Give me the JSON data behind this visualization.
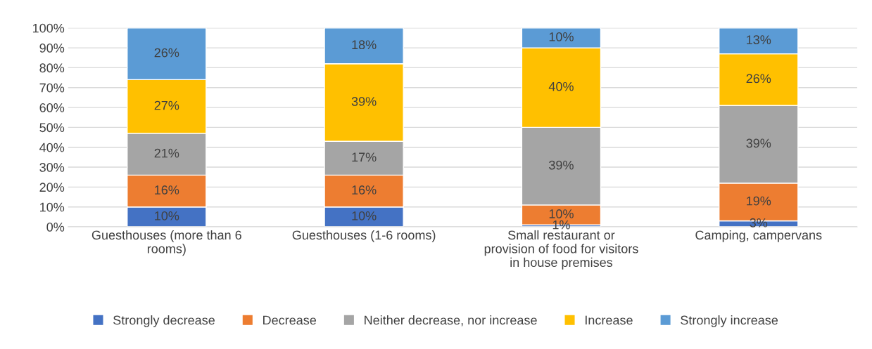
{
  "chart_data": {
    "type": "bar",
    "stacked": true,
    "categories": [
      "Guesthouses (more than 6\nrooms)",
      "Guesthouses (1-6 rooms)",
      "Small restaurant or\nprovision of food for visitors\nin house premises",
      "Camping, campervans"
    ],
    "series": [
      {
        "name": "Strongly decrease",
        "color": "#4472c4",
        "values": [
          10,
          10,
          1,
          3
        ],
        "value_labels": [
          "10%",
          "10%",
          "1%",
          "3%"
        ]
      },
      {
        "name": "Decrease",
        "color": "#ed7d31",
        "values": [
          16,
          16,
          10,
          19
        ],
        "value_labels": [
          "16%",
          "16%",
          "10%",
          "19%"
        ]
      },
      {
        "name": "Neither decrease, nor increase",
        "color": "#a5a5a5",
        "values": [
          21,
          17,
          39,
          39
        ],
        "value_labels": [
          "21%",
          "17%",
          "39%",
          "39%"
        ]
      },
      {
        "name": "Increase",
        "color": "#ffc000",
        "values": [
          27,
          39,
          40,
          26
        ],
        "value_labels": [
          "27%",
          "39%",
          "40%",
          "26%"
        ]
      },
      {
        "name": "Strongly increase",
        "color": "#5b9bd5",
        "values": [
          26,
          18,
          10,
          13
        ],
        "value_labels": [
          "26%",
          "18%",
          "10%",
          "13%"
        ]
      }
    ],
    "ylim": [
      0,
      100
    ],
    "yticks": [
      {
        "value": 0,
        "label": "0%"
      },
      {
        "value": 10,
        "label": "10%"
      },
      {
        "value": 20,
        "label": "20%"
      },
      {
        "value": 30,
        "label": "30%"
      },
      {
        "value": 40,
        "label": "40%"
      },
      {
        "value": 50,
        "label": "50%"
      },
      {
        "value": 60,
        "label": "60%"
      },
      {
        "value": 70,
        "label": "70%"
      },
      {
        "value": 80,
        "label": "80%"
      },
      {
        "value": 90,
        "label": "90%"
      },
      {
        "value": 100,
        "label": "100%"
      }
    ],
    "grid": "y",
    "legend": "bottom"
  }
}
